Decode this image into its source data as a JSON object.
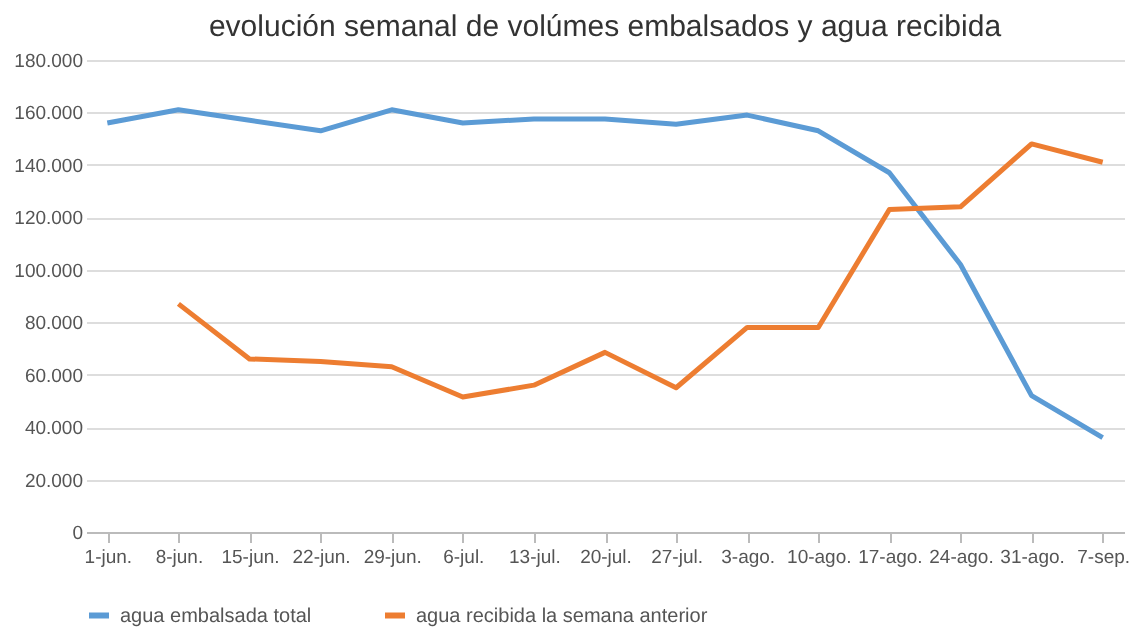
{
  "chart_data": {
    "type": "line",
    "title": "evolución semanal de volúmes embalsados y  agua recibida",
    "categories": [
      "1-jun.",
      "8-jun.",
      "15-jun.",
      "22-jun.",
      "29-jun.",
      "6-jul.",
      "13-jul.",
      "20-jul.",
      "27-jul.",
      "3-ago.",
      "10-ago.",
      "17-ago.",
      "24-ago.",
      "31-ago.",
      "7-sep."
    ],
    "series": [
      {
        "name": "agua embalsada total",
        "color": "#5b9bd5",
        "values": [
          156000,
          161000,
          157000,
          153000,
          161000,
          156000,
          157500,
          157500,
          155500,
          159000,
          153000,
          137000,
          102000,
          52000,
          36000
        ]
      },
      {
        "name": "agua recibida la semana anterior",
        "color": "#ed7d31",
        "values": [
          null,
          87000,
          66000,
          65000,
          63000,
          51500,
          56000,
          68500,
          55000,
          78000,
          78000,
          123000,
          124000,
          148000,
          141000
        ]
      }
    ],
    "ylim": [
      0,
      180000
    ],
    "yticks": [
      0,
      {
        "value": 20000,
        "label": "20.000"
      },
      {
        "value": 40000,
        "label": "40.000"
      },
      {
        "value": 60000,
        "label": "60.000"
      },
      {
        "value": 80000,
        "label": "80.000"
      },
      {
        "value": 100000,
        "label": "100.000"
      },
      {
        "value": 120000,
        "label": "120.000"
      },
      {
        "value": 140000,
        "label": "140.000"
      },
      {
        "value": 160000,
        "label": "160.000"
      },
      {
        "value": 180000,
        "label": "180.000"
      }
    ],
    "grid": "y",
    "legend": "bottom",
    "marker": "none",
    "line_style": "solid"
  }
}
